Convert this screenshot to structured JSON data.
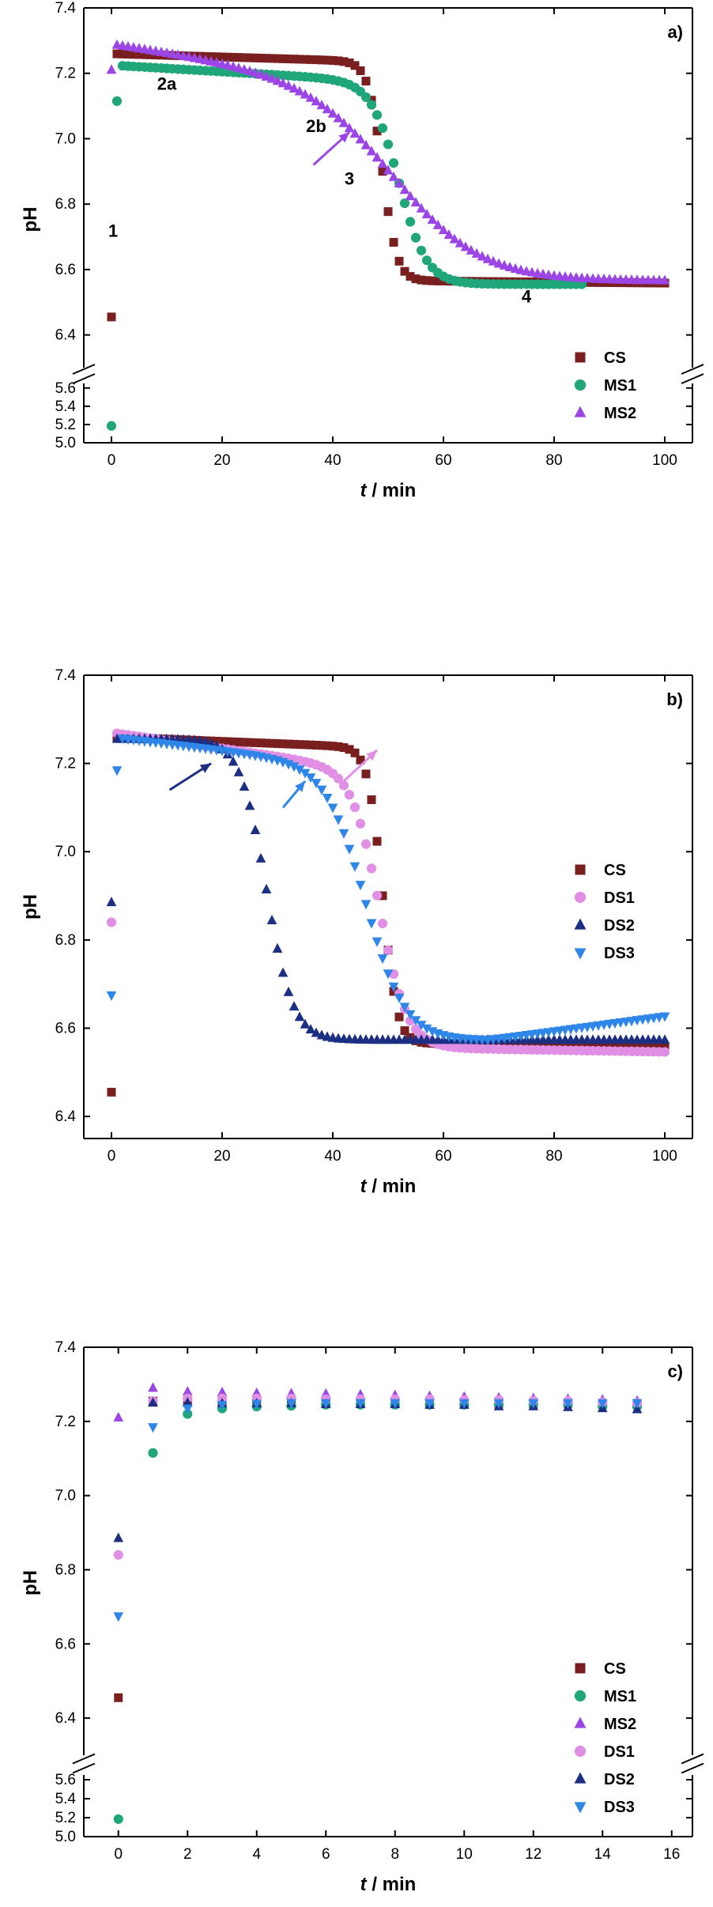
{
  "colors": {
    "CS": "#7a1f1f",
    "MS1": "#1fa67a",
    "MS2": "#9b45e6",
    "DS1": "#e08fe4",
    "DS2": "#1d2f82",
    "DS3": "#2e86e8"
  },
  "markers": {
    "CS": "square",
    "MS1": "circle",
    "MS2": "triangle-up",
    "DS1": "circle",
    "DS2": "triangle-up",
    "DS3": "triangle-down"
  },
  "chart_data": [
    {
      "panel": "a)",
      "type": "scatter",
      "xlabel_italic": "t",
      "xlabel_rest": " / min",
      "ylabel": "pH",
      "xlim": [
        -5,
        105
      ],
      "xticks": [
        0,
        20,
        40,
        60,
        80,
        100
      ],
      "axis_break": true,
      "upper_ylim": [
        6.3,
        7.4
      ],
      "upper_yticks": [
        "6.4",
        "6.6",
        "6.8",
        "7.0",
        "7.2",
        "7.4"
      ],
      "lower_ylim": [
        5.0,
        5.65
      ],
      "lower_yticks": [
        "5.0",
        "5.2",
        "5.4",
        "5.6"
      ],
      "legend": [
        "CS",
        "MS1",
        "MS2"
      ],
      "legend_position": "bottom-right",
      "annotations": [
        {
          "text": "1",
          "x": 0.3,
          "y": 6.7
        },
        {
          "text": "2a",
          "x": 10,
          "y": 7.15
        },
        {
          "text": "2b",
          "x": 37,
          "y": 7.02
        },
        {
          "text": "3",
          "x": 43,
          "y": 6.86
        },
        {
          "text": "4",
          "x": 75,
          "y": 6.5
        }
      ],
      "arrows": [
        {
          "series": "MS2",
          "x1": 36.5,
          "y1": 6.92,
          "x2": 43,
          "y2": 7.02
        }
      ],
      "series": [
        {
          "name": "CS",
          "model": "sigmoid",
          "x0": 0,
          "y0": 6.455,
          "x1": 1,
          "x_end": 100,
          "step": 1,
          "top": 7.26,
          "bottom": 6.565,
          "mid": 49,
          "width": 1.3,
          "slope": -0.0005,
          "tail": -0.00015
        },
        {
          "name": "MS1",
          "model": "sigmoid",
          "x0": 0,
          "y0": 5.185,
          "x1": 1,
          "y1": 7.115,
          "x_end": 85,
          "step": 1,
          "top": 7.225,
          "bottom": 6.555,
          "mid": 52,
          "width": 2.5,
          "slope": -0.001,
          "tail": 0
        },
        {
          "name": "MS2",
          "model": "sigmoid",
          "x0": 0,
          "y0": 7.21,
          "x1": 1,
          "x_end": 100,
          "step": 1,
          "top": 7.29,
          "bottom": 6.565,
          "mid": 52,
          "width": 8,
          "slope": -0.0025,
          "tail": 0
        }
      ]
    },
    {
      "panel": "b)",
      "type": "scatter",
      "xlabel_italic": "t",
      "xlabel_rest": " / min",
      "ylabel": "pH",
      "xlim": [
        -5,
        105
      ],
      "xticks": [
        0,
        20,
        40,
        60,
        80,
        100
      ],
      "axis_break": false,
      "ylim": [
        6.35,
        7.4
      ],
      "yticks": [
        "6.4",
        "6.6",
        "6.8",
        "7.0",
        "7.2",
        "7.4"
      ],
      "legend": [
        "CS",
        "DS1",
        "DS2",
        "DS3"
      ],
      "legend_position": "right",
      "arrows": [
        {
          "series": "DS2",
          "x1": 10.5,
          "y1": 7.14,
          "x2": 18,
          "y2": 7.2
        },
        {
          "series": "DS3",
          "x1": 31,
          "y1": 7.1,
          "x2": 35,
          "y2": 7.16
        },
        {
          "series": "DS1",
          "x1": 42,
          "y1": 7.16,
          "x2": 48,
          "y2": 7.23
        }
      ],
      "series": [
        {
          "name": "CS",
          "model": "sigmoid",
          "x0": 0,
          "y0": 6.455,
          "x1": 1,
          "x_end": 100,
          "step": 1,
          "top": 7.26,
          "bottom": 6.565,
          "mid": 49,
          "width": 1.3,
          "slope": -0.0005,
          "tail": -0.00015
        },
        {
          "name": "DS1",
          "model": "sigmoid",
          "x0": 0,
          "y0": 6.84,
          "x1": 1,
          "x_end": 100,
          "step": 1,
          "top": 7.27,
          "bottom": 6.555,
          "mid": 48.5,
          "width": 2.5,
          "slope": -0.0018,
          "tail": -0.0002
        },
        {
          "name": "DS2",
          "model": "sigmoid",
          "x0": 0,
          "y0": 6.885,
          "x1": 1,
          "x_end": 100,
          "step": 1,
          "top": 7.255,
          "bottom": 6.573,
          "mid": 28,
          "width": 2.4,
          "slope": 0,
          "tail": 0
        },
        {
          "name": "DS3",
          "model": "sigmoid",
          "x0": 0,
          "y0": 6.675,
          "x1": 1,
          "y1": 7.185,
          "x_end": 100,
          "step": 1,
          "top": 7.26,
          "bottom": 6.573,
          "mid": 46,
          "width": 3.6,
          "slope": -0.0015,
          "tail": 0.0017,
          "tail_start": 68
        }
      ]
    },
    {
      "panel": "c)",
      "type": "scatter",
      "xlabel_italic": "t",
      "xlabel_rest": " / min",
      "ylabel": "pH",
      "xlim": [
        -1,
        16.6
      ],
      "xticks": [
        0,
        2,
        4,
        6,
        8,
        10,
        12,
        14,
        16
      ],
      "axis_break": true,
      "upper_ylim": [
        6.3,
        7.4
      ],
      "upper_yticks": [
        "6.4",
        "6.6",
        "6.8",
        "7.0",
        "7.2",
        "7.4"
      ],
      "lower_ylim": [
        5.0,
        5.65
      ],
      "lower_yticks": [
        "5.0",
        "5.2",
        "5.4",
        "5.6"
      ],
      "legend": [
        "CS",
        "MS1",
        "MS2",
        "DS1",
        "DS2",
        "DS3"
      ],
      "legend_position": "bottom-right",
      "series": [
        {
          "name": "CS",
          "x": [
            0,
            1,
            2,
            3,
            4,
            5,
            6,
            7,
            8,
            9,
            10,
            11,
            12,
            13,
            14,
            15
          ],
          "y": [
            6.455,
            7.255,
            7.255,
            7.252,
            7.252,
            7.252,
            7.25,
            7.25,
            7.25,
            7.25,
            7.248,
            7.248,
            7.248,
            7.248,
            7.248,
            7.245
          ]
        },
        {
          "name": "MS1",
          "x": [
            0,
            1,
            2,
            3,
            4,
            5,
            6,
            7,
            8,
            9,
            10,
            11,
            12,
            13,
            14,
            15
          ],
          "y": [
            5.185,
            7.115,
            7.22,
            7.235,
            7.24,
            7.242,
            7.245,
            7.245,
            7.245,
            7.245,
            7.245,
            7.245,
            7.245,
            7.245,
            7.24,
            7.24
          ]
        },
        {
          "name": "MS2",
          "x": [
            0,
            1,
            2,
            3,
            4,
            5,
            6,
            7,
            8,
            9,
            10,
            11,
            12,
            13,
            14,
            15
          ],
          "y": [
            7.21,
            7.29,
            7.28,
            7.278,
            7.276,
            7.275,
            7.274,
            7.272,
            7.27,
            7.268,
            7.266,
            7.264,
            7.262,
            7.26,
            7.258,
            7.255
          ]
        },
        {
          "name": "DS1",
          "x": [
            0,
            1,
            2,
            3,
            4,
            5,
            6,
            7,
            8,
            9,
            10,
            11,
            12,
            13,
            14,
            15
          ],
          "y": [
            6.84,
            7.255,
            7.262,
            7.262,
            7.262,
            7.262,
            7.26,
            7.26,
            7.26,
            7.26,
            7.258,
            7.258,
            7.256,
            7.255,
            7.252,
            7.25
          ]
        },
        {
          "name": "DS2",
          "x": [
            0,
            1,
            2,
            3,
            4,
            5,
            6,
            7,
            8,
            9,
            10,
            11,
            12,
            13,
            14,
            15
          ],
          "y": [
            6.885,
            7.25,
            7.25,
            7.248,
            7.248,
            7.248,
            7.246,
            7.246,
            7.246,
            7.244,
            7.244,
            7.24,
            7.24,
            7.238,
            7.235,
            7.232
          ]
        },
        {
          "name": "DS3",
          "x": [
            0,
            1,
            2,
            3,
            4,
            5,
            6,
            7,
            8,
            9,
            10,
            11,
            12,
            13,
            14,
            15
          ],
          "y": [
            6.675,
            7.185,
            7.235,
            7.245,
            7.248,
            7.25,
            7.25,
            7.25,
            7.25,
            7.25,
            7.25,
            7.25,
            7.25,
            7.25,
            7.25,
            7.25
          ]
        }
      ]
    }
  ]
}
